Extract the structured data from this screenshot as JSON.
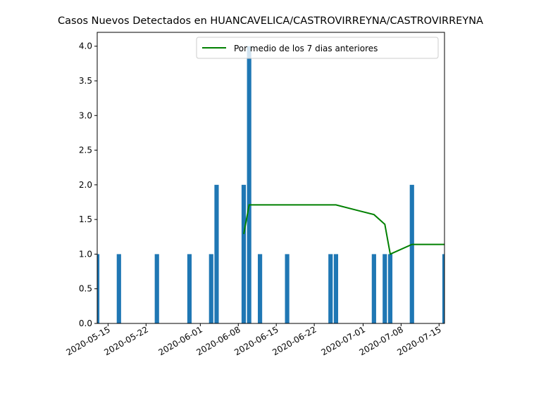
{
  "chart_data": {
    "type": "bar",
    "title": "Casos Nuevos Detectados en HUANCAVELICA/CASTROVIRREYNA/CASTROVIRREYNA",
    "xlabel": "",
    "ylabel": "",
    "x_axis_type": "date",
    "xlim": [
      "2020-05-13",
      "2020-07-16"
    ],
    "ylim": [
      0,
      4.2
    ],
    "yticks": [
      "0.0",
      "0.5",
      "1.0",
      "1.5",
      "2.0",
      "2.5",
      "3.0",
      "3.5",
      "4.0"
    ],
    "xticks": [
      "2020-05-15",
      "2020-05-22",
      "2020-06-01",
      "2020-06-08",
      "2020-06-15",
      "2020-06-22",
      "2020-07-01",
      "2020-07-08",
      "2020-07-15"
    ],
    "grid": false,
    "legend_position": "top-right",
    "colors": {
      "bars": "#1f77b4",
      "line": "#008000"
    },
    "bars": {
      "dates": [
        "2020-05-13",
        "2020-05-17",
        "2020-05-24",
        "2020-05-30",
        "2020-06-03",
        "2020-06-04",
        "2020-06-09",
        "2020-06-10",
        "2020-06-12",
        "2020-06-17",
        "2020-06-25",
        "2020-06-26",
        "2020-07-03",
        "2020-07-05",
        "2020-07-06",
        "2020-07-10",
        "2020-07-16"
      ],
      "values": [
        1,
        1,
        1,
        1,
        1,
        2,
        2,
        4,
        1,
        1,
        1,
        1,
        1,
        1,
        1,
        2,
        1
      ]
    },
    "series": [
      {
        "name": "Por medio de los 7 dias anteriores",
        "type": "line",
        "x": [
          "2020-06-09",
          "2020-06-10",
          "2020-06-26",
          "2020-07-03",
          "2020-07-05",
          "2020-07-06",
          "2020-07-10",
          "2020-07-16"
        ],
        "values": [
          1.29,
          1.71,
          1.71,
          1.57,
          1.43,
          1.0,
          1.14,
          1.14
        ]
      }
    ]
  }
}
